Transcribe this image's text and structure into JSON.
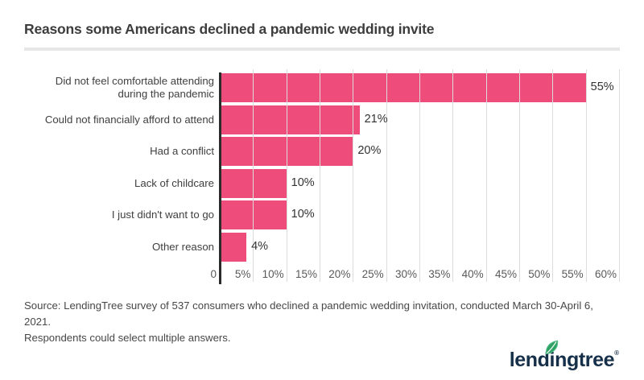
{
  "header": {
    "title": "Reasons some Americans declined a pandemic wedding invite"
  },
  "chart_data": {
    "type": "bar",
    "orientation": "horizontal",
    "title": "Reasons some Americans declined a pandemic wedding invite",
    "categories": [
      "Did not feel comfortable attending during the pandemic",
      "Could not financially afford to attend",
      "Had a conflict",
      "Lack of childcare",
      "I just didn't want to go",
      "Other reason"
    ],
    "values": [
      55,
      21,
      20,
      10,
      10,
      4
    ],
    "value_labels": [
      "55%",
      "21%",
      "20%",
      "10%",
      "10%",
      "4%"
    ],
    "x_ticks": [
      "0",
      "5%",
      "10%",
      "15%",
      "20%",
      "25%",
      "30%",
      "35%",
      "40%",
      "45%",
      "50%",
      "55%",
      "60%"
    ],
    "xlim": [
      0,
      60
    ],
    "grid": true,
    "legend": "none",
    "bar_color": "#EE4D7B",
    "axis_color": "#2B2B2B",
    "grid_color": "#DCDCDC"
  },
  "footer": {
    "source_line1": "Source: LendingTree survey of 537 consumers who declined a pandemic wedding invitation, conducted March 30-April 6, 2021.",
    "source_line2": "Respondents could select multiple answers.",
    "brand": {
      "name": "lendingtree",
      "registered": "®",
      "navy": "#16304A",
      "green": "#2EA265"
    }
  }
}
